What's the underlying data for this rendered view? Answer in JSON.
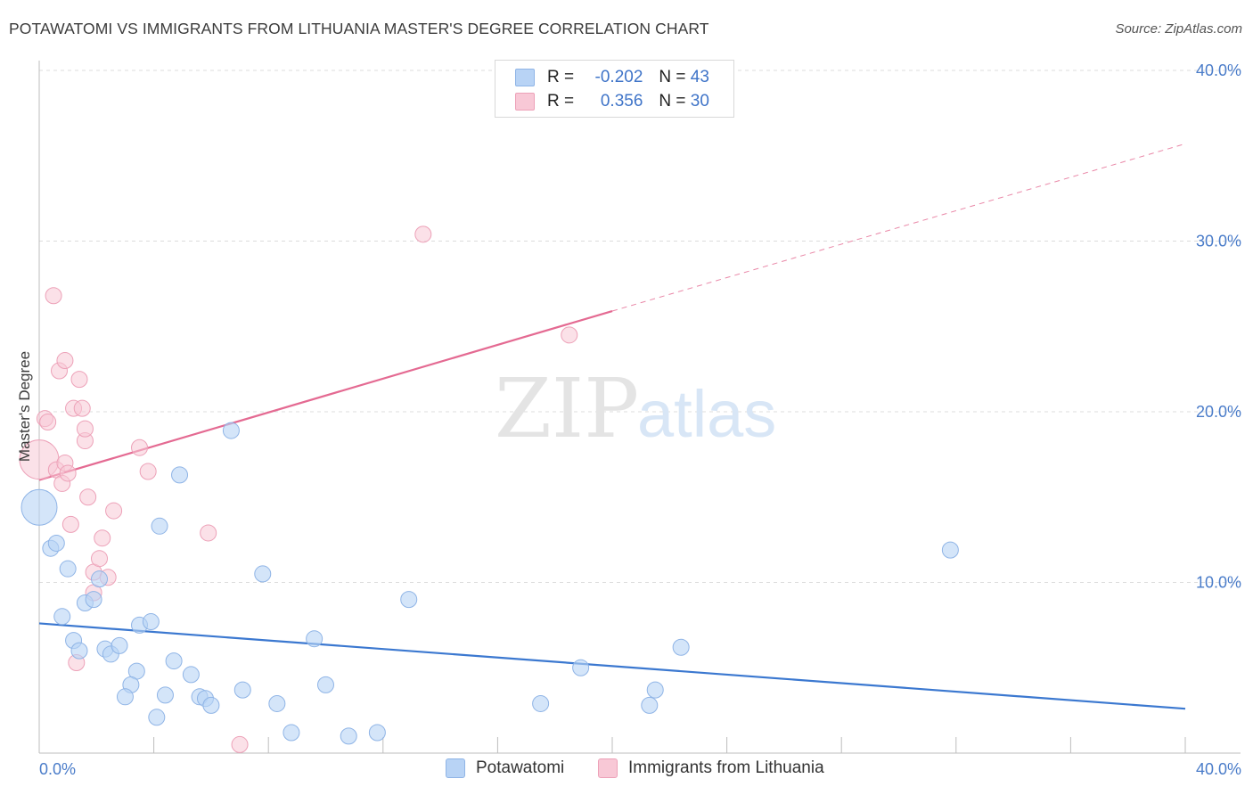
{
  "header": {
    "title": "POTAWATOMI VS IMMIGRANTS FROM LITHUANIA MASTER'S DEGREE CORRELATION CHART",
    "source": "Source: ZipAtlas.com"
  },
  "legend_box": {
    "rows": [
      {
        "r_label": "R =",
        "r_value": "-0.202",
        "n_label": "N =",
        "n_value": "43"
      },
      {
        "r_label": "R =",
        "r_value": "0.356",
        "n_label": "N =",
        "n_value": "30"
      }
    ]
  },
  "bottom_legend": {
    "items": [
      "Potawatomi",
      "Immigrants from Lithuania"
    ]
  },
  "watermark": {
    "zip": "ZIP",
    "atlas": "atlas"
  },
  "colors": {
    "blue_fill": "#b8d3f5",
    "blue_stroke": "#8fb4e6",
    "blue_line": "#3b78d0",
    "pink_fill": "#f8c8d6",
    "pink_stroke": "#eda1b8",
    "pink_line": "#e46a92",
    "tick_text": "#4a7cc9"
  },
  "chart_data": {
    "type": "scatter",
    "title": "POTAWATOMI VS IMMIGRANTS FROM LITHUANIA MASTER'S DEGREE CORRELATION CHART",
    "xlabel": "",
    "ylabel": "Master's Degree",
    "xlim": [
      0,
      40
    ],
    "ylim": [
      0,
      40
    ],
    "x_tick_labels": [
      "0.0%",
      "40.0%"
    ],
    "y_tick_labels": [
      "10.0%",
      "20.0%",
      "30.0%",
      "40.0%"
    ],
    "y_ticks": [
      10,
      20,
      30,
      40
    ],
    "grid": true,
    "legend_position": "top-center",
    "series": [
      {
        "name": "Potawatomi",
        "r": -0.202,
        "n": 43,
        "points": [
          [
            0.0,
            14.4
          ],
          [
            0.4,
            12.0
          ],
          [
            0.6,
            12.3
          ],
          [
            1.0,
            10.8
          ],
          [
            1.6,
            8.8
          ],
          [
            1.9,
            9.0
          ],
          [
            2.1,
            10.2
          ],
          [
            0.8,
            8.0
          ],
          [
            1.2,
            6.6
          ],
          [
            1.4,
            6.0
          ],
          [
            2.3,
            6.1
          ],
          [
            2.5,
            5.8
          ],
          [
            2.8,
            6.3
          ],
          [
            3.5,
            7.5
          ],
          [
            3.9,
            7.7
          ],
          [
            3.4,
            4.8
          ],
          [
            3.2,
            4.0
          ],
          [
            3.0,
            3.3
          ],
          [
            4.4,
            3.4
          ],
          [
            4.7,
            5.4
          ],
          [
            5.3,
            4.6
          ],
          [
            5.6,
            3.3
          ],
          [
            5.8,
            3.2
          ],
          [
            6.0,
            2.8
          ],
          [
            4.1,
            2.1
          ],
          [
            7.1,
            3.7
          ],
          [
            8.3,
            2.9
          ],
          [
            8.8,
            1.2
          ],
          [
            9.6,
            6.7
          ],
          [
            10.0,
            4.0
          ],
          [
            10.8,
            1.0
          ],
          [
            11.8,
            1.2
          ],
          [
            4.2,
            13.3
          ],
          [
            4.9,
            16.3
          ],
          [
            6.7,
            18.9
          ],
          [
            7.8,
            10.5
          ],
          [
            12.9,
            9.0
          ],
          [
            17.5,
            2.9
          ],
          [
            18.9,
            5.0
          ],
          [
            21.3,
            2.8
          ],
          [
            21.5,
            3.7
          ],
          [
            22.4,
            6.2
          ],
          [
            31.8,
            11.9
          ]
        ],
        "trend": {
          "x": [
            0,
            40
          ],
          "y": [
            7.6,
            2.6
          ]
        }
      },
      {
        "name": "Immigrants from Lithuania",
        "r": 0.356,
        "n": 30,
        "points": [
          [
            0.0,
            17.2
          ],
          [
            0.2,
            19.6
          ],
          [
            0.3,
            19.4
          ],
          [
            0.5,
            26.8
          ],
          [
            0.7,
            22.4
          ],
          [
            0.9,
            23.0
          ],
          [
            0.6,
            16.6
          ],
          [
            0.8,
            15.8
          ],
          [
            0.9,
            17.0
          ],
          [
            1.0,
            16.4
          ],
          [
            1.1,
            13.4
          ],
          [
            1.2,
            20.2
          ],
          [
            1.4,
            21.9
          ],
          [
            1.5,
            20.2
          ],
          [
            1.6,
            18.3
          ],
          [
            1.6,
            19.0
          ],
          [
            1.7,
            15.0
          ],
          [
            1.9,
            10.6
          ],
          [
            1.9,
            9.4
          ],
          [
            2.1,
            11.4
          ],
          [
            2.2,
            12.6
          ],
          [
            2.4,
            10.3
          ],
          [
            2.6,
            14.2
          ],
          [
            3.5,
            17.9
          ],
          [
            3.8,
            16.5
          ],
          [
            5.9,
            12.9
          ],
          [
            13.4,
            30.4
          ],
          [
            18.5,
            24.5
          ],
          [
            1.3,
            5.3
          ],
          [
            7.0,
            0.5
          ]
        ],
        "trend": {
          "x": [
            0,
            20
          ],
          "y": [
            16.0,
            25.9
          ]
        },
        "trend_extension": {
          "x": [
            20,
            40
          ],
          "y": [
            25.9,
            35.7
          ]
        }
      }
    ]
  }
}
